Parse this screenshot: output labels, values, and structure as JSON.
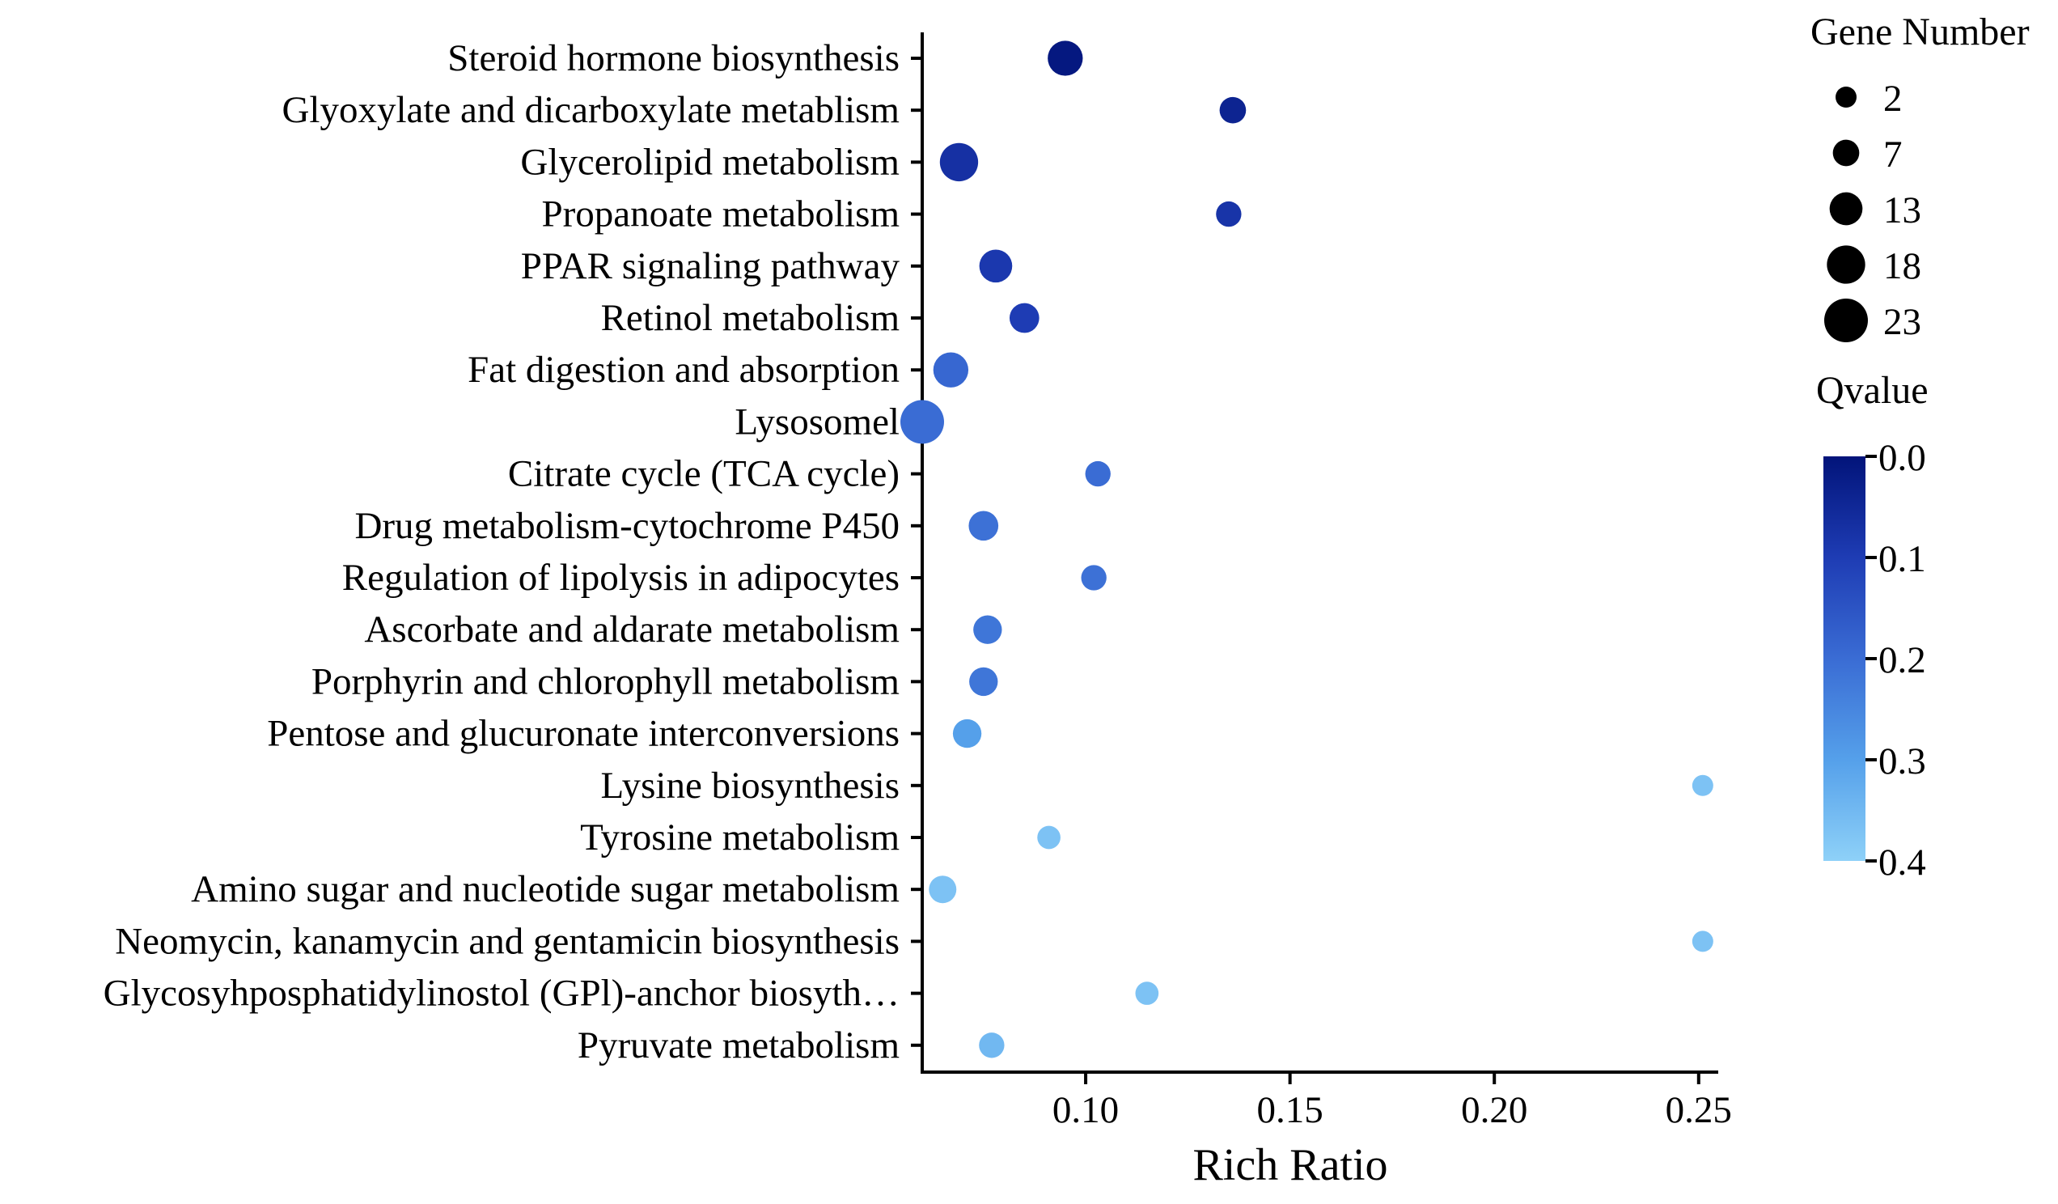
{
  "chart_data": {
    "type": "scatter",
    "title": "",
    "xlabel": "Rich Ratio",
    "ylabel": "",
    "xlim": [
      0.06,
      0.254
    ],
    "xticks": [
      0.1,
      0.15,
      0.2,
      0.25
    ],
    "xtick_labels": [
      "0.10",
      "0.15",
      "0.20",
      "0.25"
    ],
    "categories": [
      "Steroid hormone biosynthesis",
      "Glyoxylate and dicarboxylate metablism",
      "Glycerolipid metabolism",
      "Propanoate metabolism",
      "PPAR signaling pathway",
      "Retinol metabolism",
      "Fat digestion and absorption",
      "Lysosomel",
      "Citrate cycle (TCA cycle)",
      "Drug metabolism-cytochrome P450",
      "Regulation of lipolysis in adipocytes",
      "Ascorbate and aldarate metabolism",
      "Porphyrin and chlorophyll metabolism",
      "Pentose and glucuronate interconversions",
      "Lysine biosynthesis",
      "Tyrosine metabolism",
      "Amino sugar and nucleotide sugar metabolism",
      "Neomycin, kanamycin and gentamicin biosynthesis",
      "Glycosyhposphatidylinostol (GPl)-anchor biosyth…",
      "Pyruvate metabolism"
    ],
    "points": [
      {
        "category": "Steroid hormone biosynthesis",
        "rich_ratio": 0.095,
        "gene_number": 15,
        "qvalue": 0.01
      },
      {
        "category": "Glyoxylate and dicarboxylate metablism",
        "rich_ratio": 0.136,
        "gene_number": 7,
        "qvalue": 0.04
      },
      {
        "category": "Glycerolipid metabolism",
        "rich_ratio": 0.069,
        "gene_number": 18,
        "qvalue": 0.07
      },
      {
        "category": "Propanoate metabolism",
        "rich_ratio": 0.135,
        "gene_number": 6,
        "qvalue": 0.08
      },
      {
        "category": "PPAR signaling pathway",
        "rich_ratio": 0.078,
        "gene_number": 13,
        "qvalue": 0.09
      },
      {
        "category": "Retinol metabolism",
        "rich_ratio": 0.085,
        "gene_number": 10,
        "qvalue": 0.1
      },
      {
        "category": "Fat digestion and absorption",
        "rich_ratio": 0.067,
        "gene_number": 15,
        "qvalue": 0.19
      },
      {
        "category": "Lysosomel",
        "rich_ratio": 0.06,
        "gene_number": 23,
        "qvalue": 0.2
      },
      {
        "category": "Citrate cycle (TCA cycle)",
        "rich_ratio": 0.103,
        "gene_number": 6,
        "qvalue": 0.2
      },
      {
        "category": "Drug metabolism-cytochrome P450",
        "rich_ratio": 0.075,
        "gene_number": 10,
        "qvalue": 0.21
      },
      {
        "category": "Regulation of lipolysis in adipocytes",
        "rich_ratio": 0.102,
        "gene_number": 6,
        "qvalue": 0.21
      },
      {
        "category": "Ascorbate and aldarate metabolism",
        "rich_ratio": 0.076,
        "gene_number": 9,
        "qvalue": 0.22
      },
      {
        "category": "Porphyrin and chlorophyll metabolism",
        "rich_ratio": 0.075,
        "gene_number": 9,
        "qvalue": 0.22
      },
      {
        "category": "Pentose and glucuronate interconversions",
        "rich_ratio": 0.071,
        "gene_number": 9,
        "qvalue": 0.3
      },
      {
        "category": "Lysine biosynthesis",
        "rich_ratio": 0.251,
        "gene_number": 2,
        "qvalue": 0.37
      },
      {
        "category": "Tyrosine metabolism",
        "rich_ratio": 0.091,
        "gene_number": 4,
        "qvalue": 0.37
      },
      {
        "category": "Amino sugar and nucleotide sugar metabolism",
        "rich_ratio": 0.065,
        "gene_number": 8,
        "qvalue": 0.37
      },
      {
        "category": "Neomycin, kanamycin and gentamicin biosynthesis",
        "rich_ratio": 0.251,
        "gene_number": 2,
        "qvalue": 0.37
      },
      {
        "category": "Glycosyhposphatidylinostol (GPl)-anchor biosyth…",
        "rich_ratio": 0.115,
        "gene_number": 4,
        "qvalue": 0.37
      },
      {
        "category": "Pyruvate metabolism",
        "rich_ratio": 0.077,
        "gene_number": 6,
        "qvalue": 0.35
      }
    ],
    "size_legend": {
      "title": "Gene Number",
      "values": [
        2,
        7,
        13,
        18,
        23
      ],
      "labels": [
        "2",
        "7",
        "13",
        "18",
        "23"
      ]
    },
    "color_legend": {
      "title": "Qvalue",
      "range": [
        0.0,
        0.4
      ],
      "ticks": [
        "0.0",
        "0.1",
        "0.2",
        "0.3",
        "0.4"
      ],
      "low_color": "#02147a",
      "high_color": "#8ed1f8"
    }
  }
}
